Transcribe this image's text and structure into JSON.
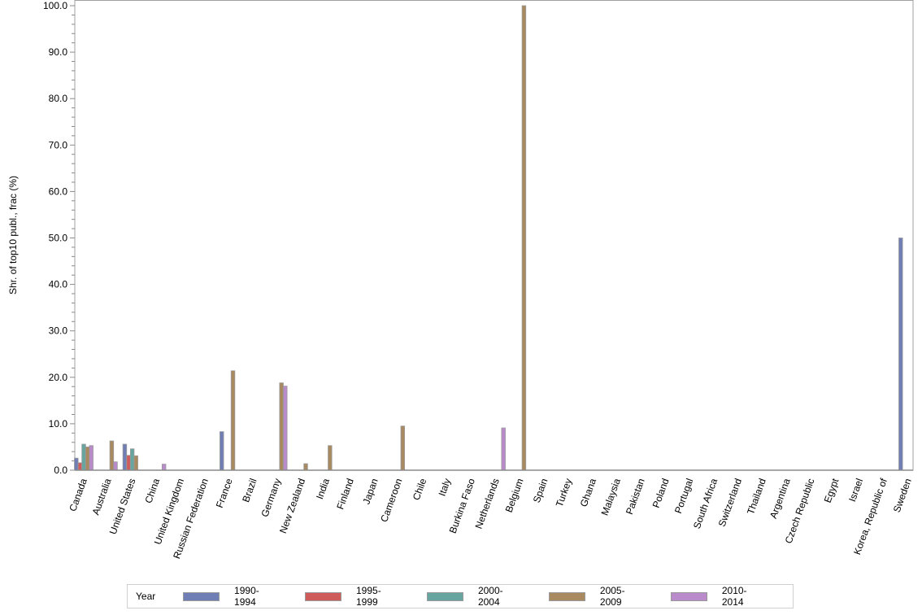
{
  "chart_data": {
    "type": "bar",
    "title": "",
    "xlabel": "",
    "ylabel": "Shr. of top10 publ., frac (%)",
    "ylim": [
      0,
      100
    ],
    "yticks": [
      "0.0",
      "10.0",
      "20.0",
      "30.0",
      "40.0",
      "50.0",
      "60.0",
      "70.0",
      "80.0",
      "90.0",
      "100.0"
    ],
    "grid": false,
    "legend_position": "bottom",
    "legend_title": "Year",
    "categories": [
      "Canada",
      "Australia",
      "United States",
      "China",
      "United Kingdom",
      "Russian Federation",
      "France",
      "Brazil",
      "Germany",
      "New Zealand",
      "India",
      "Finland",
      "Japan",
      "Cameroon",
      "Chile",
      "Italy",
      "Burkina Faso",
      "Netherlands",
      "Belgium",
      "Spain",
      "Turkey",
      "Ghana",
      "Malaysia",
      "Pakistan",
      "Poland",
      "Portugal",
      "South Africa",
      "Switzerland",
      "Thailand",
      "Argentina",
      "Czech Republic",
      "Egypt",
      "Israel",
      "Korea, Republic of",
      "Sweden"
    ],
    "series": [
      {
        "name": "1990-1994",
        "color": "#6f7eb5",
        "values": [
          2.6,
          0,
          5.6,
          0,
          0,
          0,
          8.3,
          0,
          0,
          0,
          0,
          0,
          0,
          0,
          0,
          0,
          0,
          0,
          0,
          0,
          0,
          0,
          0,
          0,
          0,
          0,
          0,
          0,
          0,
          0,
          0,
          0,
          0,
          0,
          50.0
        ]
      },
      {
        "name": "1995-1999",
        "color": "#d05b5b",
        "values": [
          1.6,
          0,
          3.2,
          0,
          0,
          0,
          0,
          0,
          0,
          0,
          0,
          0,
          0,
          0,
          0,
          0,
          0,
          0,
          0,
          0,
          0,
          0,
          0,
          0,
          0,
          0,
          0,
          0,
          0,
          0,
          0,
          0,
          0,
          0,
          0
        ]
      },
      {
        "name": "2000-2004",
        "color": "#66a5a0",
        "values": [
          5.6,
          0,
          4.6,
          0,
          0,
          0,
          0,
          0,
          0,
          0,
          0,
          0,
          0,
          0,
          0,
          0,
          0,
          0,
          0,
          0,
          0,
          0,
          0,
          0,
          0,
          0,
          0,
          0,
          0,
          0,
          0,
          0,
          0,
          0,
          0
        ]
      },
      {
        "name": "2005-2009",
        "color": "#a98a60",
        "values": [
          5.0,
          6.3,
          3.1,
          0,
          0,
          0,
          21.4,
          0,
          18.8,
          1.4,
          5.3,
          0,
          0,
          9.5,
          0,
          0,
          0,
          0,
          100.0,
          0,
          0,
          0,
          0,
          0,
          0,
          0,
          0,
          0,
          0,
          0,
          0,
          0,
          0,
          0,
          0
        ]
      },
      {
        "name": "2010-2014",
        "color": "#b98bcb",
        "values": [
          5.3,
          1.8,
          0,
          1.3,
          0,
          0,
          0,
          0,
          18.1,
          0,
          0,
          0,
          0,
          0,
          0,
          0,
          0,
          9.1,
          0,
          0,
          0,
          0,
          0,
          0,
          0,
          0,
          0,
          0,
          0,
          0,
          0,
          0,
          0,
          0,
          0
        ]
      }
    ]
  }
}
